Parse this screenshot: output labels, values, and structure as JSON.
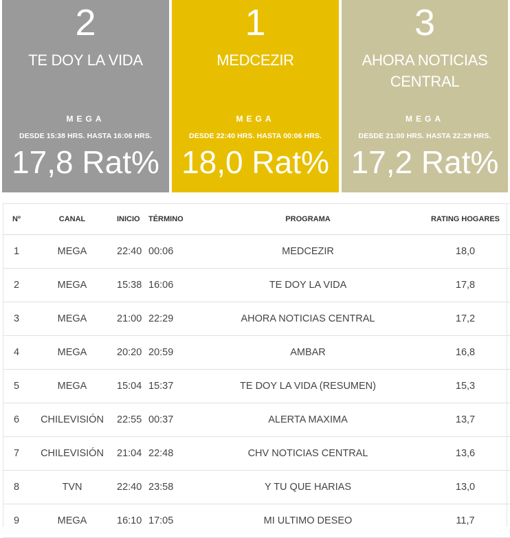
{
  "colors": {
    "card1": "#9a9a9a",
    "card2": "#e8bf00",
    "card3": "#c9c39c"
  },
  "cards": [
    {
      "rank": "2",
      "title": "TE DOY LA VIDA",
      "channel": "MEGA",
      "time": "DESDE 15:38 HRS. HASTA 16:06 HRS.",
      "rating": "17,8 Rat%"
    },
    {
      "rank": "1",
      "title": "MEDCEZIR",
      "channel": "MEGA",
      "time": "DESDE 22:40 HRS. HASTA 00:06 HRS.",
      "rating": "18,0 Rat%"
    },
    {
      "rank": "3",
      "title": "AHORA NOTICIAS CENTRAL",
      "channel": "MEGA",
      "time": "DESDE 21:00 HRS. HASTA 22:29 HRS.",
      "rating": "17,2 Rat%"
    }
  ],
  "table": {
    "headers": {
      "n": "Nº",
      "canal": "CANAL",
      "inicio": "INICIO",
      "termino": "TÉRMINO",
      "programa": "PROGRAMA",
      "rating": "RATING HOGARES"
    },
    "rows": [
      {
        "n": "1",
        "canal": "MEGA",
        "inicio": "22:40",
        "termino": "00:06",
        "programa": "MEDCEZIR",
        "rating": "18,0"
      },
      {
        "n": "2",
        "canal": "MEGA",
        "inicio": "15:38",
        "termino": "16:06",
        "programa": "TE DOY LA VIDA",
        "rating": "17,8"
      },
      {
        "n": "3",
        "canal": "MEGA",
        "inicio": "21:00",
        "termino": "22:29",
        "programa": "AHORA NOTICIAS CENTRAL",
        "rating": "17,2"
      },
      {
        "n": "4",
        "canal": "MEGA",
        "inicio": "20:20",
        "termino": "20:59",
        "programa": "AMBAR",
        "rating": "16,8"
      },
      {
        "n": "5",
        "canal": "MEGA",
        "inicio": "15:04",
        "termino": "15:37",
        "programa": "TE DOY LA VIDA (RESUMEN)",
        "rating": "15,3"
      },
      {
        "n": "6",
        "canal": "CHILEVISIÓN",
        "inicio": "22:55",
        "termino": "00:37",
        "programa": "ALERTA MAXIMA",
        "rating": "13,7"
      },
      {
        "n": "7",
        "canal": "CHILEVISIÓN",
        "inicio": "21:04",
        "termino": "22:48",
        "programa": "CHV NOTICIAS CENTRAL",
        "rating": "13,6"
      },
      {
        "n": "8",
        "canal": "TVN",
        "inicio": "22:40",
        "termino": "23:58",
        "programa": "Y TU QUE HARIAS",
        "rating": "13,0"
      },
      {
        "n": "9",
        "canal": "MEGA",
        "inicio": "16:10",
        "termino": "17:05",
        "programa": "MI ULTIMO DESEO",
        "rating": "11,7"
      }
    ]
  }
}
